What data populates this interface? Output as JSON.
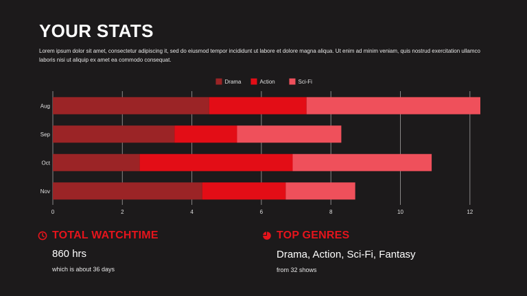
{
  "header": {
    "title": "YOUR STATS",
    "description": "Lorem ipsum dolor sit amet, consectetur adipiscing it, sed do eiusmod tempor incididunt ut labore et dolore magna aliqua. Ut enim ad minim veniam, quis nostrud exercitation ullamco laboris nisi ut aliquip ex amet ea commodo consequat."
  },
  "chart_data": {
    "type": "bar",
    "orientation": "horizontal",
    "stacked": true,
    "categories": [
      "Aug",
      "Sep",
      "Oct",
      "Nov"
    ],
    "series": [
      {
        "name": "Drama",
        "color": "#9b2426",
        "values": [
          4.5,
          3.5,
          2.5,
          4.3
        ]
      },
      {
        "name": "Action",
        "color": "#e30d16",
        "values": [
          2.8,
          1.8,
          4.4,
          2.4
        ]
      },
      {
        "name": "Sci-Fi",
        "color": "#ef505b",
        "values": [
          5.0,
          3.0,
          4.0,
          2.0
        ]
      }
    ],
    "xlim": [
      0,
      12.3
    ],
    "xticks": [
      0,
      2,
      4,
      6,
      8,
      10,
      12
    ],
    "grid": true,
    "legend": "top-center",
    "title": "",
    "xlabel": "",
    "ylabel": ""
  },
  "watchtime": {
    "heading": "TOTAL WATCHTIME",
    "value": "860 hrs",
    "sub": "which is about 36 days",
    "icon": "clock-icon"
  },
  "genres": {
    "heading": "TOP GENRES",
    "value": "Drama, Action, Sci-Fi, Fantasy",
    "sub": "from 32 shows",
    "icon": "pie-chart-icon"
  },
  "colors": {
    "background": "#1c1a1b",
    "accent": "#e5141c"
  }
}
